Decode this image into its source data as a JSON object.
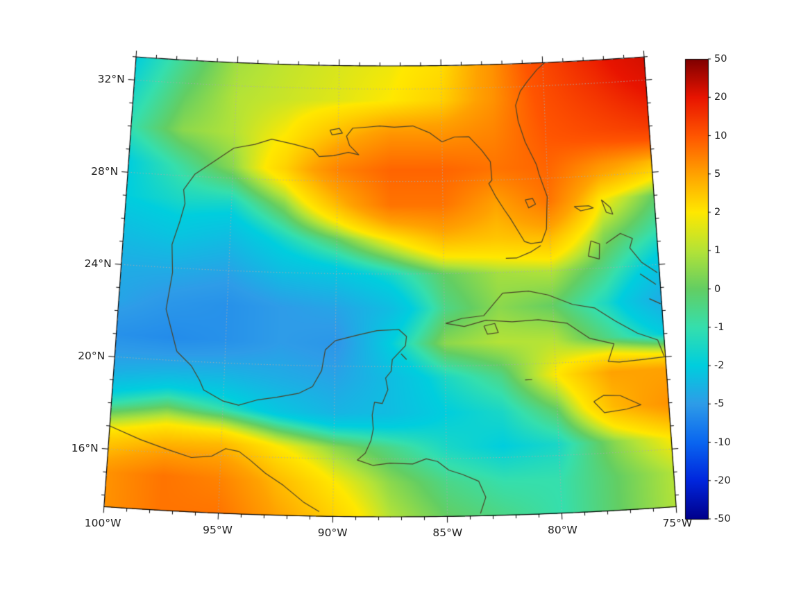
{
  "styles": {
    "background": "#ffffff",
    "frame_color": "#000000",
    "gridline_color": "#ababab",
    "tick_label_color": "#222222"
  },
  "chart_data": {
    "type": "heatmap",
    "title": "",
    "projection": {
      "name": "lambert_conformal_conic",
      "center_lon": -87.5,
      "cone_constant": 0.326
    },
    "extent": {
      "lon_min": -100,
      "lon_max": -75,
      "lat_min": 13.5,
      "lat_max": 33
    },
    "x_ticks": [
      {
        "lon": -100,
        "label": "100°W"
      },
      {
        "lon": -95,
        "label": "95°W"
      },
      {
        "lon": -90,
        "label": "90°W"
      },
      {
        "lon": -85,
        "label": "85°W"
      },
      {
        "lon": -80,
        "label": "80°W"
      },
      {
        "lon": -75,
        "label": "75°W"
      }
    ],
    "y_ticks": [
      {
        "lat": 32,
        "label": "32°N"
      },
      {
        "lat": 28,
        "label": "28°N"
      },
      {
        "lat": 24,
        "label": "24°N"
      },
      {
        "lat": 20,
        "label": "20°N"
      },
      {
        "lat": 16,
        "label": "16°N"
      }
    ],
    "gridline_lons": [
      -95,
      -90,
      -85,
      -80
    ],
    "gridline_lats": [
      16,
      20,
      24,
      28,
      32
    ],
    "colorbar": {
      "levels": [
        -50,
        -20,
        -10,
        -5,
        -2,
        -1,
        0,
        1,
        2,
        5,
        10,
        20,
        50
      ],
      "colors": [
        "#00008b",
        "#0026dd",
        "#0a66f0",
        "#2e9ce8",
        "#00cede",
        "#35dfad",
        "#63ce63",
        "#b4e337",
        "#ffe800",
        "#ffa200",
        "#ff5500",
        "#e81400",
        "#7f0000"
      ],
      "tick_labels": [
        "50",
        "20",
        "10",
        "5",
        "2",
        "1",
        "0",
        "-1",
        "-2",
        "-5",
        "-10",
        "-20",
        "-50"
      ]
    },
    "field": {
      "lons": [
        -100,
        -97.5,
        -95,
        -92.5,
        -90,
        -87.5,
        -85,
        -82.5,
        -80,
        -77.5,
        -75
      ],
      "lats": [
        33,
        31.5,
        30,
        28.5,
        27,
        25.5,
        24,
        22.5,
        21,
        19.5,
        18,
        16.5,
        15,
        13.5
      ],
      "values": [
        [
          -2,
          -0.5,
          0.8,
          1.2,
          1.5,
          1.8,
          2.5,
          6,
          12,
          18,
          26
        ],
        [
          -1.5,
          0,
          1,
          1.3,
          1.6,
          2,
          3,
          6,
          11,
          15,
          20
        ],
        [
          -1,
          0.5,
          1,
          2,
          4,
          6,
          6,
          7,
          10,
          12,
          14
        ],
        [
          -2,
          -0.8,
          0.5,
          3,
          7,
          9,
          9,
          8,
          9,
          6,
          4
        ],
        [
          -2,
          -1.5,
          -1.5,
          0.5,
          4,
          8,
          8,
          5,
          8,
          2,
          0
        ],
        [
          -3,
          -2.5,
          -3,
          -1.5,
          0,
          2,
          4,
          3.5,
          4,
          0.5,
          -1
        ],
        [
          -4,
          -4,
          -4.5,
          -3,
          -2.5,
          -1.5,
          0,
          0.8,
          1,
          -0.5,
          -2.5
        ],
        [
          -4.5,
          -5.5,
          -6,
          -5,
          -4.5,
          -3,
          -0.5,
          0.5,
          0,
          -1.5,
          -4
        ],
        [
          -6,
          -6.5,
          -6,
          -5,
          -5.5,
          -2,
          0.5,
          1,
          1,
          -0.5,
          -2
        ],
        [
          -4,
          -3.5,
          -3.5,
          -4,
          -4.5,
          -3,
          -1.5,
          -0.5,
          2,
          5,
          5
        ],
        [
          -1,
          0,
          -1,
          -2.5,
          -3.5,
          -3,
          -2,
          -1.5,
          0,
          4,
          6
        ],
        [
          3,
          4,
          4,
          2,
          0.5,
          -0.5,
          -1.5,
          -2,
          -1.5,
          0.5,
          2
        ],
        [
          6,
          8,
          7,
          4,
          2,
          0.5,
          -0.5,
          -1,
          -1,
          0,
          1
        ],
        [
          6,
          8,
          8,
          5,
          3,
          1,
          0,
          -0.5,
          -1,
          0,
          1
        ]
      ]
    },
    "coastlines": {
      "color": "#4a4228",
      "paths": [
        [
          [
            -97.2,
            20.4
          ],
          [
            -97.8,
            22.2
          ],
          [
            -97.6,
            23.8
          ],
          [
            -97.7,
            25.0
          ],
          [
            -97.4,
            26.0
          ],
          [
            -97.2,
            26.8
          ],
          [
            -97.3,
            27.4
          ],
          [
            -96.8,
            28.1
          ],
          [
            -95.9,
            28.7
          ],
          [
            -95.0,
            29.3
          ],
          [
            -94.0,
            29.5
          ],
          [
            -93.2,
            29.75
          ],
          [
            -92.1,
            29.55
          ],
          [
            -91.2,
            29.35
          ],
          [
            -90.9,
            29.05
          ],
          [
            -90.2,
            29.1
          ],
          [
            -89.5,
            29.25
          ],
          [
            -89.0,
            29.15
          ],
          [
            -89.45,
            29.55
          ],
          [
            -89.6,
            29.95
          ],
          [
            -89.3,
            30.3
          ],
          [
            -88.6,
            30.35
          ],
          [
            -88.0,
            30.4
          ],
          [
            -87.3,
            30.35
          ],
          [
            -86.4,
            30.4
          ],
          [
            -85.6,
            30.1
          ],
          [
            -85.0,
            29.7
          ],
          [
            -84.4,
            29.9
          ],
          [
            -83.7,
            29.9
          ],
          [
            -83.1,
            29.3
          ],
          [
            -82.7,
            28.8
          ],
          [
            -82.65,
            28.0
          ],
          [
            -82.8,
            27.85
          ],
          [
            -82.5,
            27.3
          ],
          [
            -82.1,
            26.7
          ],
          [
            -81.85,
            26.35
          ],
          [
            -81.2,
            25.3
          ],
          [
            -80.9,
            25.2
          ],
          [
            -80.4,
            25.25
          ],
          [
            -80.15,
            25.8
          ],
          [
            -80.1,
            26.6
          ],
          [
            -80.05,
            27.2
          ],
          [
            -80.4,
            28.2
          ],
          [
            -80.5,
            28.6
          ],
          [
            -81.0,
            29.6
          ],
          [
            -81.3,
            30.5
          ],
          [
            -81.4,
            31.2
          ],
          [
            -81.15,
            31.8
          ],
          [
            -80.8,
            32.2
          ],
          [
            -80.3,
            32.7
          ],
          [
            -79.9,
            33.0
          ]
        ],
        [
          [
            -97.2,
            20.4
          ],
          [
            -96.5,
            19.8
          ],
          [
            -96.1,
            19.2
          ],
          [
            -95.9,
            18.8
          ],
          [
            -95.0,
            18.35
          ],
          [
            -94.3,
            18.2
          ],
          [
            -93.5,
            18.45
          ],
          [
            -92.6,
            18.6
          ],
          [
            -91.6,
            18.8
          ],
          [
            -91.0,
            19.1
          ],
          [
            -90.6,
            19.8
          ],
          [
            -90.45,
            20.7
          ],
          [
            -90.0,
            21.1
          ],
          [
            -89.0,
            21.35
          ],
          [
            -88.1,
            21.55
          ],
          [
            -87.1,
            21.6
          ],
          [
            -86.75,
            21.3
          ],
          [
            -86.8,
            20.9
          ],
          [
            -87.4,
            20.3
          ],
          [
            -87.45,
            19.8
          ],
          [
            -87.7,
            19.5
          ],
          [
            -87.6,
            19.0
          ],
          [
            -87.85,
            18.4
          ],
          [
            -88.2,
            18.45
          ],
          [
            -88.3,
            17.9
          ],
          [
            -88.25,
            17.3
          ],
          [
            -88.35,
            16.8
          ],
          [
            -88.6,
            16.25
          ],
          [
            -88.95,
            15.95
          ],
          [
            -88.25,
            15.72
          ],
          [
            -87.5,
            15.82
          ],
          [
            -86.5,
            15.78
          ],
          [
            -85.9,
            16.0
          ],
          [
            -85.4,
            15.88
          ],
          [
            -84.9,
            15.5
          ],
          [
            -84.3,
            15.3
          ],
          [
            -83.6,
            15.0
          ],
          [
            -83.3,
            14.3
          ],
          [
            -83.55,
            13.6
          ]
        ],
        [
          [
            -100.0,
            17.0
          ],
          [
            -98.6,
            16.5
          ],
          [
            -97.4,
            16.15
          ],
          [
            -96.3,
            15.85
          ],
          [
            -95.4,
            15.95
          ],
          [
            -94.8,
            16.3
          ],
          [
            -94.2,
            16.2
          ],
          [
            -93.7,
            15.85
          ],
          [
            -93.0,
            15.3
          ],
          [
            -92.2,
            14.8
          ],
          [
            -91.3,
            14.1
          ],
          [
            -90.6,
            13.7
          ]
        ],
        [
          [
            -84.95,
            21.85
          ],
          [
            -84.2,
            22.05
          ],
          [
            -83.2,
            22.15
          ],
          [
            -82.3,
            23.1
          ],
          [
            -81.1,
            23.15
          ],
          [
            -80.2,
            22.95
          ],
          [
            -79.1,
            22.5
          ],
          [
            -78.1,
            22.3
          ],
          [
            -77.2,
            21.7
          ],
          [
            -76.2,
            21.1
          ],
          [
            -75.3,
            20.75
          ],
          [
            -75.05,
            20.0
          ],
          [
            -76.0,
            19.95
          ],
          [
            -77.1,
            19.9
          ],
          [
            -77.6,
            19.95
          ],
          [
            -77.3,
            20.7
          ],
          [
            -78.4,
            21.0
          ],
          [
            -79.4,
            21.7
          ],
          [
            -80.7,
            21.9
          ],
          [
            -81.9,
            21.85
          ],
          [
            -83.1,
            21.95
          ],
          [
            -84.1,
            21.7
          ],
          [
            -84.95,
            21.85
          ]
        ],
        [
          [
            -78.35,
            18.25
          ],
          [
            -77.9,
            18.5
          ],
          [
            -77.15,
            18.45
          ],
          [
            -76.25,
            18.0
          ],
          [
            -76.9,
            17.85
          ],
          [
            -77.9,
            17.75
          ],
          [
            -78.35,
            18.25
          ]
        ],
        [
          [
            -83.2,
            21.7
          ],
          [
            -82.7,
            21.8
          ],
          [
            -82.55,
            21.4
          ],
          [
            -83.05,
            21.35
          ],
          [
            -83.2,
            21.7
          ]
        ],
        [
          [
            -78.8,
            26.72
          ],
          [
            -78.1,
            26.72
          ],
          [
            -77.9,
            26.62
          ],
          [
            -78.5,
            26.52
          ],
          [
            -78.8,
            26.72
          ]
        ],
        [
          [
            -77.5,
            26.95
          ],
          [
            -77.1,
            26.6
          ],
          [
            -77.0,
            26.3
          ],
          [
            -77.3,
            26.4
          ],
          [
            -77.5,
            26.95
          ]
        ],
        [
          [
            -78.1,
            25.2
          ],
          [
            -77.7,
            25.05
          ],
          [
            -77.75,
            24.4
          ],
          [
            -78.25,
            24.55
          ],
          [
            -78.1,
            25.2
          ]
        ],
        [
          [
            -77.4,
            25.05
          ],
          [
            -76.7,
            25.45
          ],
          [
            -76.15,
            25.2
          ],
          [
            -76.3,
            24.8
          ],
          [
            -75.8,
            24.15
          ],
          [
            -75.1,
            23.65
          ]
        ],
        [
          [
            -75.9,
            23.65
          ],
          [
            -75.2,
            23.15
          ]
        ],
        [
          [
            -75.55,
            22.55
          ],
          [
            -75.05,
            22.3
          ]
        ],
        [
          [
            -80.45,
            25.1
          ],
          [
            -80.9,
            24.85
          ],
          [
            -81.6,
            24.6
          ],
          [
            -82.1,
            24.6
          ]
        ],
        [
          [
            -81.1,
            27.1
          ],
          [
            -80.75,
            27.15
          ],
          [
            -80.62,
            26.9
          ],
          [
            -80.95,
            26.75
          ],
          [
            -81.1,
            27.1
          ]
        ],
        [
          [
            -90.4,
            30.2
          ],
          [
            -89.95,
            30.28
          ],
          [
            -89.8,
            30.08
          ],
          [
            -90.3,
            30.0
          ],
          [
            -90.4,
            30.2
          ]
        ],
        [
          [
            -87.0,
            20.55
          ],
          [
            -86.75,
            20.3
          ]
        ],
        [
          [
            -81.4,
            19.32
          ],
          [
            -81.08,
            19.32
          ]
        ]
      ]
    }
  }
}
